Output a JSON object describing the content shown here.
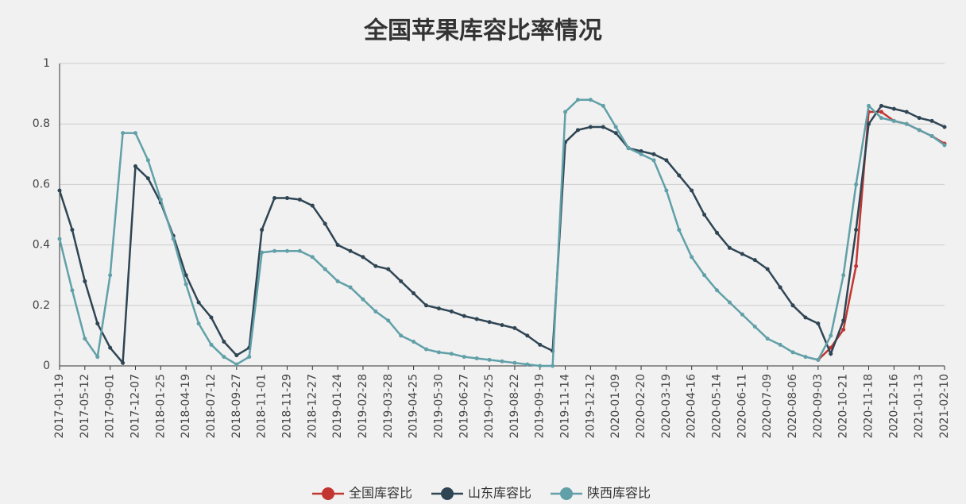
{
  "chart_data": {
    "type": "line",
    "title": "全国苹果库容比率情况",
    "categories": [
      "2017-01-19",
      null,
      "2017-05-12",
      null,
      "2017-09-01",
      null,
      "2017-12-07",
      null,
      "2018-01-25",
      null,
      "2018-04-19",
      null,
      "2018-07-12",
      null,
      "2018-09-27",
      null,
      "2018-11-01",
      null,
      "2018-11-29",
      null,
      "2018-12-27",
      null,
      "2019-01-24",
      null,
      "2019-02-28",
      null,
      "2019-03-28",
      null,
      "2019-04-25",
      null,
      "2019-05-30",
      null,
      "2019-06-27",
      null,
      "2019-07-25",
      null,
      "2019-08-22",
      null,
      "2019-09-19",
      null,
      "2019-11-14",
      null,
      "2019-12-12",
      null,
      "2020-01-09",
      null,
      "2020-02-20",
      null,
      "2020-03-19",
      null,
      "2020-04-16",
      null,
      "2020-05-14",
      null,
      "2020-06-11",
      null,
      "2020-07-09",
      null,
      "2020-08-06",
      null,
      "2020-09-03",
      null,
      "2020-10-21",
      null,
      "2020-11-18",
      null,
      "2020-12-16",
      null,
      "2021-01-13",
      null,
      "2021-02-10"
    ],
    "series": [
      {
        "name": "全国库容比",
        "color": "#c23531",
        "values": [
          null,
          null,
          null,
          null,
          null,
          null,
          null,
          null,
          null,
          null,
          null,
          null,
          null,
          null,
          null,
          null,
          null,
          null,
          null,
          null,
          null,
          null,
          null,
          null,
          null,
          null,
          null,
          null,
          null,
          null,
          null,
          null,
          null,
          null,
          null,
          null,
          null,
          null,
          null,
          null,
          null,
          null,
          null,
          null,
          null,
          null,
          null,
          null,
          null,
          null,
          null,
          null,
          null,
          null,
          null,
          null,
          null,
          null,
          null,
          null,
          0.02,
          0.06,
          0.12,
          0.33,
          0.84,
          0.84,
          0.81,
          0.8,
          0.78,
          0.76,
          0.735
        ]
      },
      {
        "name": "山东库容比",
        "color": "#2f4554",
        "values": [
          0.58,
          0.45,
          0.28,
          0.14,
          0.06,
          0.01,
          0.66,
          0.62,
          0.54,
          0.43,
          0.3,
          0.21,
          0.16,
          0.08,
          0.035,
          0.06,
          0.45,
          0.555,
          0.555,
          0.55,
          0.53,
          0.47,
          0.4,
          0.38,
          0.36,
          0.33,
          0.32,
          0.28,
          0.24,
          0.2,
          0.19,
          0.18,
          0.165,
          0.155,
          0.145,
          0.135,
          0.125,
          0.1,
          0.07,
          0.05,
          0.74,
          0.78,
          0.79,
          0.79,
          0.77,
          0.72,
          0.71,
          0.7,
          0.68,
          0.63,
          0.58,
          0.5,
          0.44,
          0.39,
          0.37,
          0.35,
          0.32,
          0.26,
          0.2,
          0.16,
          0.14,
          0.04,
          0.15,
          0.45,
          0.8,
          0.86,
          0.85,
          0.84,
          0.82,
          0.81,
          0.79
        ]
      },
      {
        "name": "陕西库容比",
        "color": "#61a0a8",
        "values": [
          0.42,
          0.25,
          0.09,
          0.03,
          0.3,
          0.77,
          0.77,
          0.68,
          0.55,
          0.42,
          0.27,
          0.14,
          0.07,
          0.03,
          0.005,
          0.03,
          0.375,
          0.38,
          0.38,
          0.38,
          0.36,
          0.32,
          0.28,
          0.26,
          0.22,
          0.18,
          0.15,
          0.1,
          0.08,
          0.055,
          0.045,
          0.04,
          0.03,
          0.025,
          0.02,
          0.015,
          0.01,
          0.005,
          0.0,
          0.0,
          0.84,
          0.88,
          0.88,
          0.86,
          0.79,
          0.72,
          0.7,
          0.68,
          0.58,
          0.45,
          0.36,
          0.3,
          0.25,
          0.21,
          0.17,
          0.13,
          0.09,
          0.07,
          0.045,
          0.03,
          0.02,
          0.1,
          0.3,
          0.6,
          0.86,
          0.82,
          0.81,
          0.8,
          0.78,
          0.76,
          0.73
        ]
      }
    ],
    "ylim": [
      0,
      1
    ],
    "yticks": [
      0,
      0.2,
      0.4,
      0.6,
      0.8,
      1
    ],
    "grid": true,
    "legend": "bottom"
  }
}
